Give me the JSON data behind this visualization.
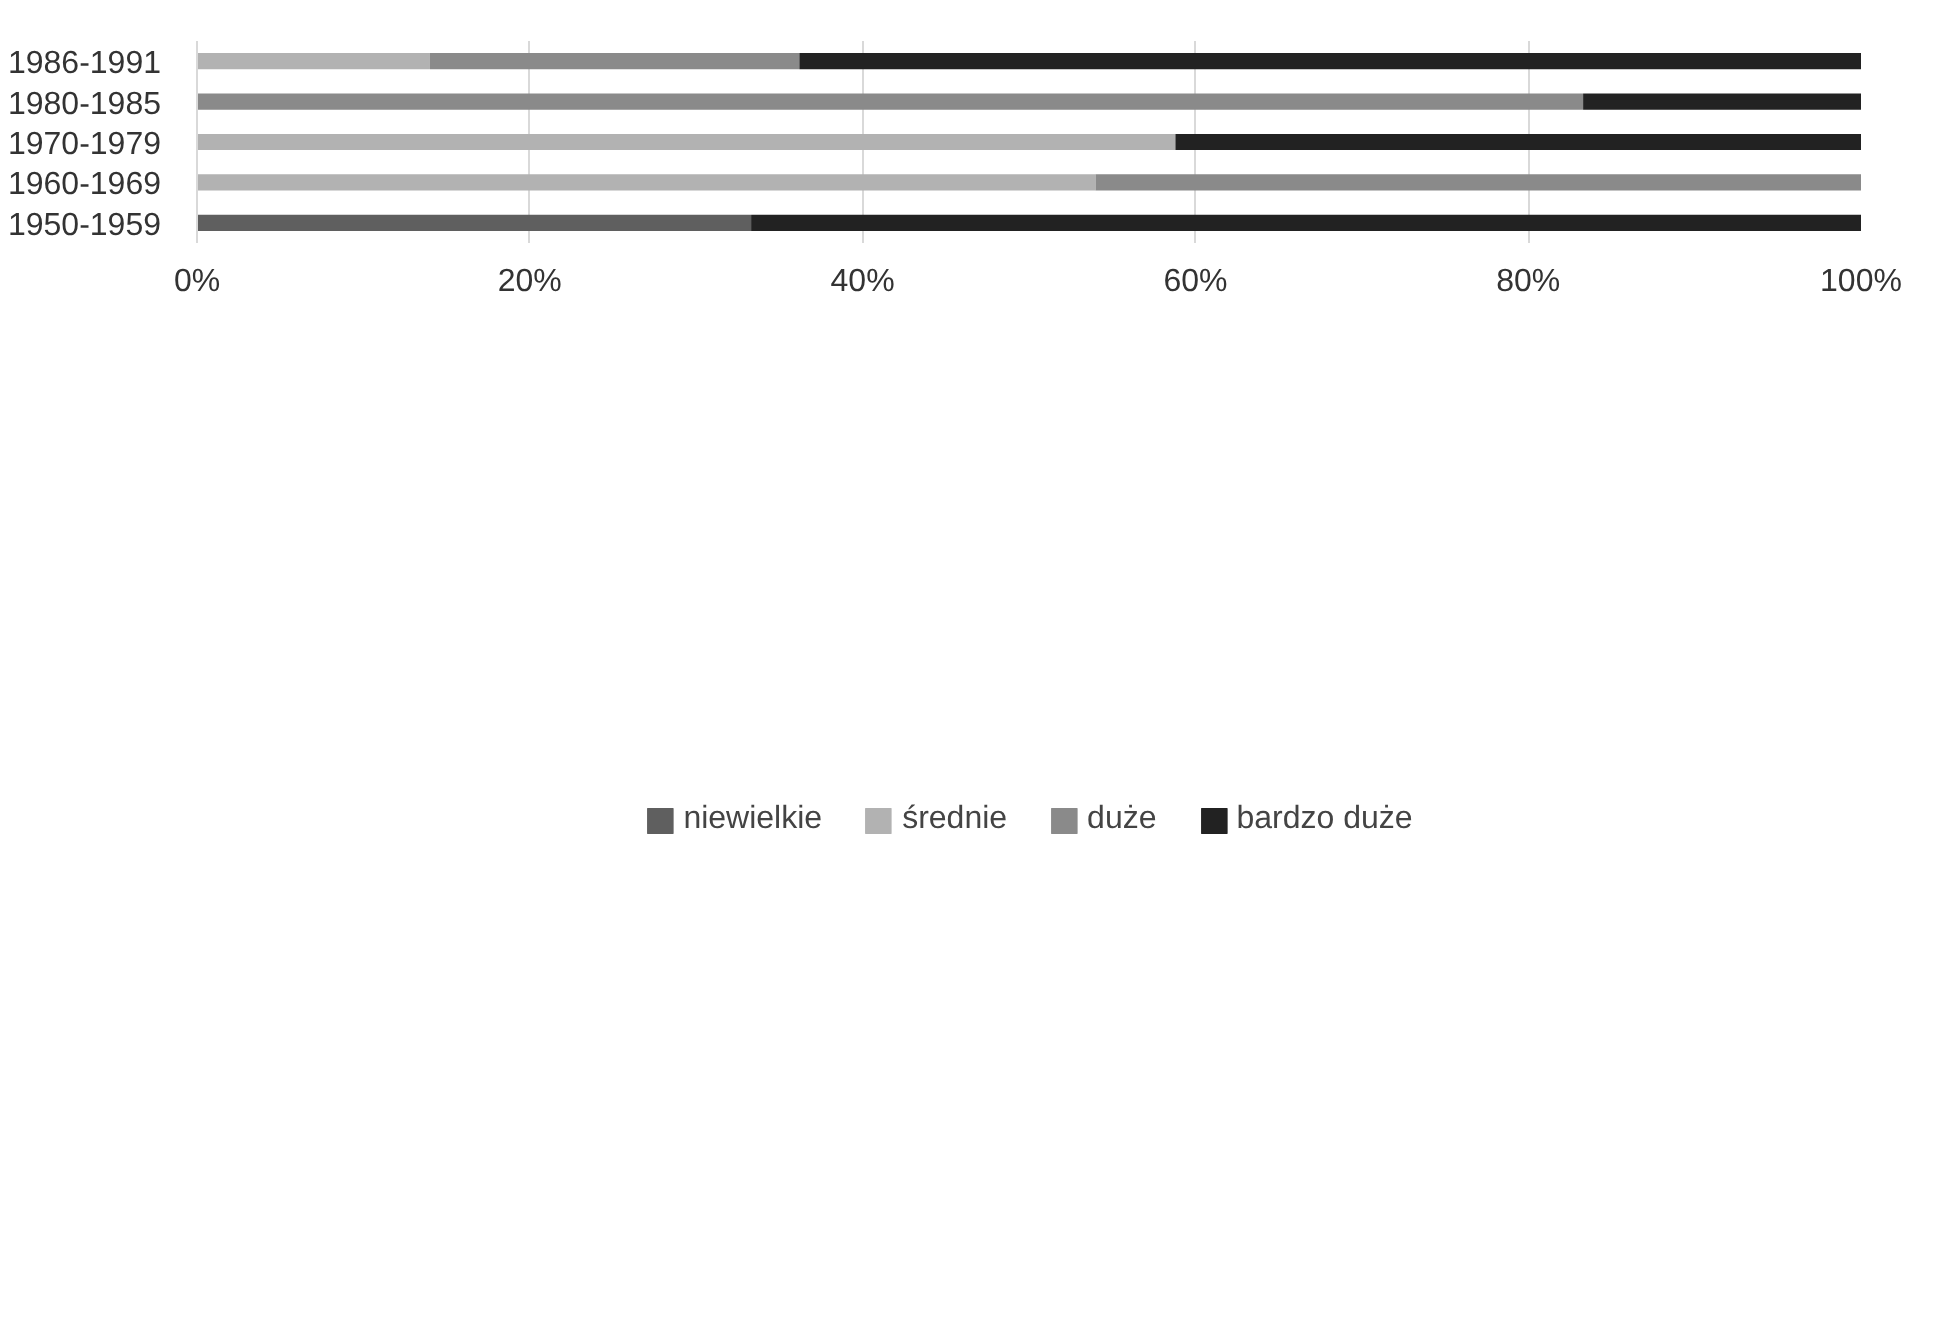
{
  "chart_data": {
    "type": "bar",
    "orientation": "horizontal",
    "stacked": true,
    "categories": [
      "1986-1991",
      "1980-1985",
      "1970-1979",
      "1960-1969",
      "1950-1959"
    ],
    "series": [
      {
        "name": "niewielkie",
        "color": "#5f5f5f",
        "values": [
          0,
          0,
          0,
          0,
          33.3
        ]
      },
      {
        "name": "średnie",
        "color": "#b2b2b2",
        "values": [
          14,
          0,
          58.8,
          54,
          0
        ]
      },
      {
        "name": "duże",
        "color": "#8a8a8a",
        "values": [
          22.2,
          83.3,
          0,
          46,
          0
        ]
      },
      {
        "name": "bardzo duże",
        "color": "#222222",
        "values": [
          63.8,
          16.7,
          41.2,
          0,
          66.7
        ]
      }
    ],
    "xlim": [
      0,
      100
    ],
    "xticks": [
      {
        "value": 0,
        "label": "0%"
      },
      {
        "value": 20,
        "label": "20%"
      },
      {
        "value": 40,
        "label": "40%"
      },
      {
        "value": 60,
        "label": "60%"
      },
      {
        "value": 80,
        "label": "80%"
      },
      {
        "value": 100,
        "label": "100%"
      }
    ],
    "grid": "x",
    "legend": "bottom"
  }
}
